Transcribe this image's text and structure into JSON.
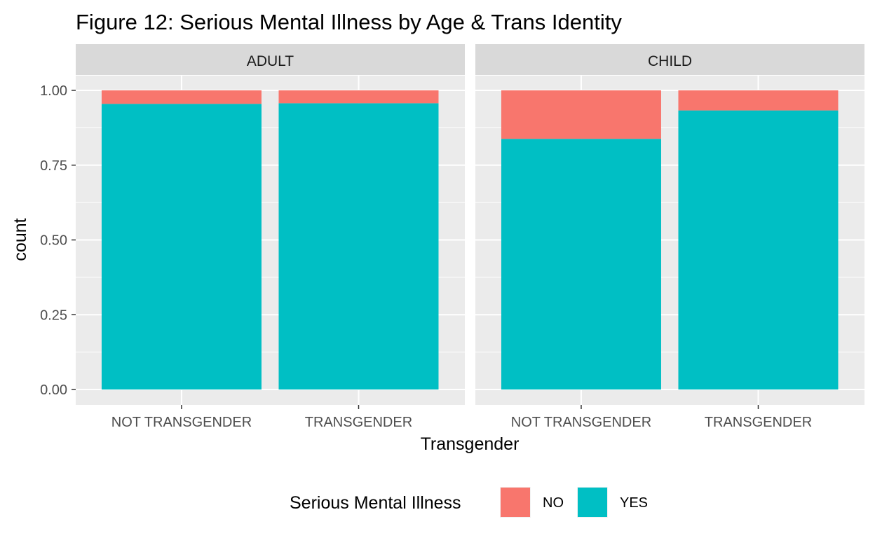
{
  "chart_data": {
    "type": "bar",
    "stacked": true,
    "title": "Figure 12: Serious Mental Illness by Age & Trans Identity",
    "xlabel": "Transgender",
    "ylabel": "count",
    "ylim": [
      0,
      1.05
    ],
    "y_ticks": [
      0,
      0.25,
      0.5,
      0.75,
      1
    ],
    "y_tick_labels": [
      "0.00",
      "0.25",
      "0.50",
      "0.75",
      "1.00"
    ],
    "grid": true,
    "legend": {
      "title": "Serious Mental Illness",
      "position": "bottom",
      "entries": [
        {
          "name": "NO",
          "color": "#F8766D"
        },
        {
          "name": "YES",
          "color": "#00BFC4"
        }
      ]
    },
    "categories": [
      "NOT TRANSGENDER",
      "TRANSGENDER"
    ],
    "facets": [
      {
        "label": "ADULT",
        "series": [
          {
            "name": "YES",
            "values": [
              0.955,
              0.957
            ]
          },
          {
            "name": "NO",
            "values": [
              0.045,
              0.043
            ]
          }
        ]
      },
      {
        "label": "CHILD",
        "series": [
          {
            "name": "YES",
            "values": [
              0.838,
              0.933
            ]
          },
          {
            "name": "NO",
            "values": [
              0.162,
              0.067
            ]
          }
        ]
      }
    ]
  }
}
